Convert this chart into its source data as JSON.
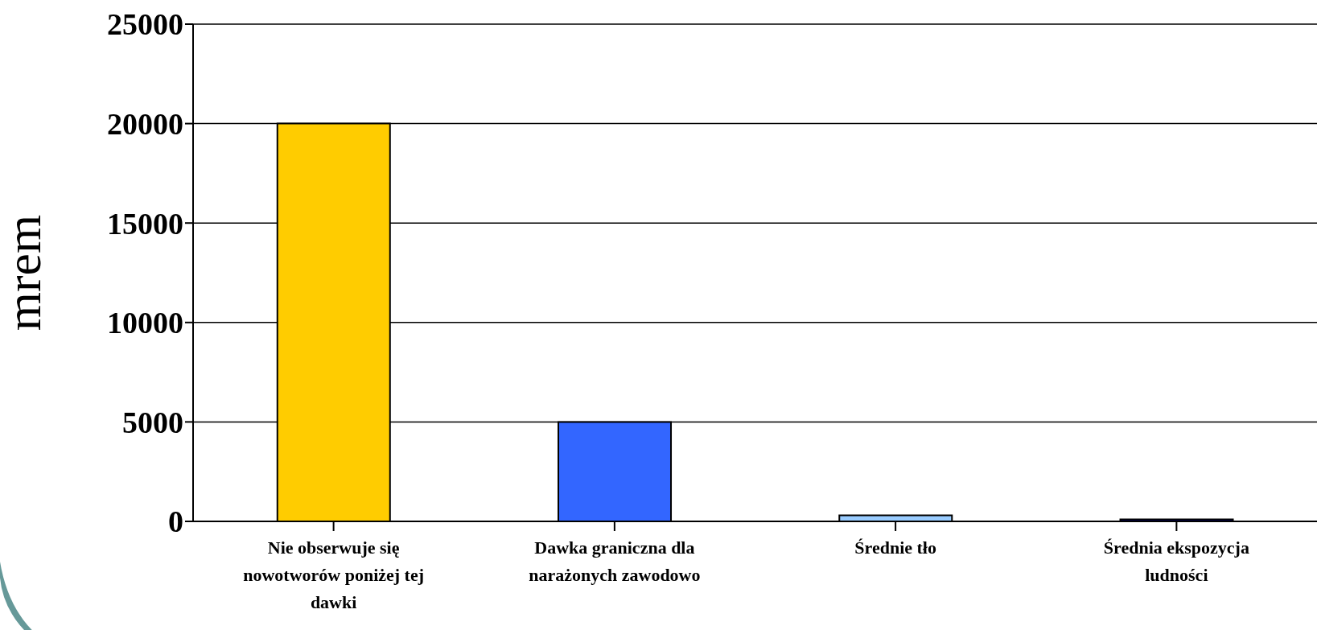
{
  "chart_data": {
    "type": "bar",
    "ylabel": "mrem",
    "categories": [
      "Nie obserwuje się nowotworów poniżej tej dawki",
      "Dawka graniczna dla narażonych zawodowo",
      "Średnie tło",
      "Średnia ekspozycja ludności"
    ],
    "values": [
      20000,
      5000,
      300,
      100
    ],
    "colors": [
      "#ffcc00",
      "#3366ff",
      "#99ccff",
      "#000080"
    ],
    "ylim": [
      0,
      25000
    ],
    "yticks": [
      0,
      5000,
      10000,
      15000,
      20000,
      25000
    ],
    "grid": "y"
  }
}
